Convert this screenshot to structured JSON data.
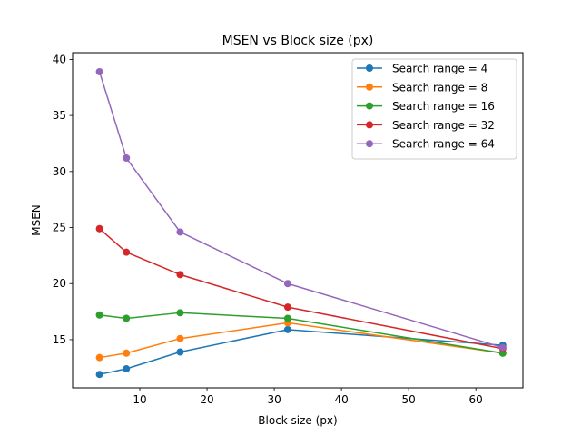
{
  "chart_data": {
    "type": "line",
    "title": "MSEN vs Block size (px)",
    "xlabel": "Block size (px)",
    "ylabel": "MSEN",
    "x": [
      4,
      8,
      16,
      32,
      64
    ],
    "xlim": [
      0,
      67
    ],
    "ylim": [
      10.7,
      40.6
    ],
    "xticks": [
      10,
      20,
      30,
      40,
      50,
      60
    ],
    "yticks": [
      15,
      20,
      25,
      30,
      35,
      40
    ],
    "grid": false,
    "legend_position": "top-right",
    "series": [
      {
        "name": "Search range = 4",
        "color": "#1f77b4",
        "values": [
          11.9,
          12.4,
          13.9,
          15.9,
          14.5
        ]
      },
      {
        "name": "Search range = 8",
        "color": "#ff7f0e",
        "values": [
          13.4,
          13.8,
          15.1,
          16.5,
          13.8
        ]
      },
      {
        "name": "Search range = 16",
        "color": "#2ca02c",
        "values": [
          17.2,
          16.9,
          17.4,
          16.9,
          13.8
        ]
      },
      {
        "name": "Search range = 32",
        "color": "#d62728",
        "values": [
          24.9,
          22.8,
          20.8,
          17.9,
          14.2
        ]
      },
      {
        "name": "Search range = 64",
        "color": "#9467bd",
        "values": [
          38.9,
          31.2,
          24.6,
          20.0,
          14.3
        ]
      }
    ]
  }
}
